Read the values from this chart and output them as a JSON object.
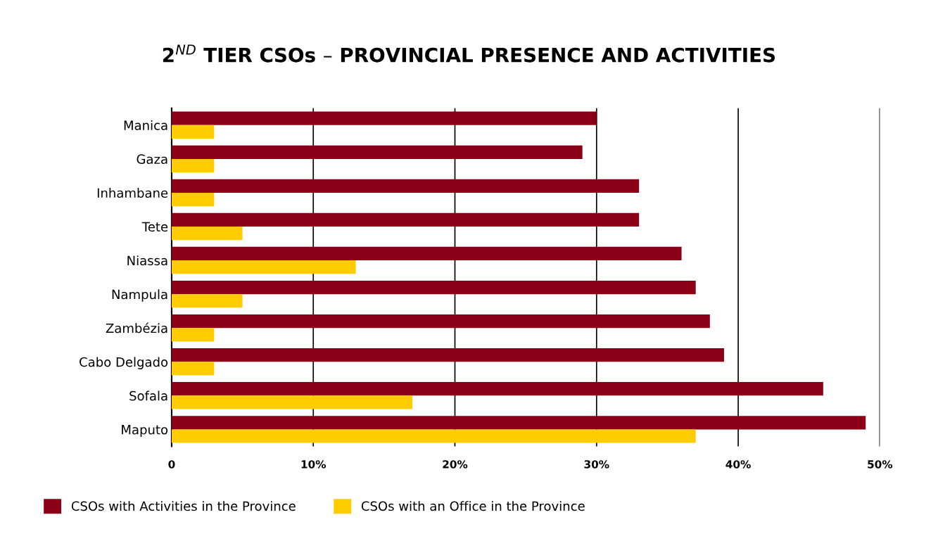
{
  "chart_data": {
    "type": "bar",
    "orientation": "horizontal",
    "title": "2$^{ND}$ TIER CSOs – PROVINCIAL PRESENCE AND ACTIVITIES",
    "categories": [
      "Manica",
      "Gaza",
      "Inhambane",
      "Tete",
      "Niassa",
      "Nampula",
      "Zambézia",
      "Cabo Delgado",
      "Sofala",
      "Maputo"
    ],
    "series": [
      {
        "name": "CSOs with Activities in the Province",
        "color": "#8b0016",
        "values": [
          30,
          29,
          33,
          33,
          36,
          37,
          38,
          39,
          46,
          49
        ]
      },
      {
        "name": "CSOs with an Office in the Province",
        "color": "#ffcc00",
        "values": [
          3,
          3,
          3,
          5,
          13,
          5,
          3,
          3,
          17,
          37
        ]
      }
    ],
    "xlim": [
      0,
      50
    ],
    "xticks": [
      0,
      {
        "value": 10,
        "label": "10%"
      },
      {
        "value": 20,
        "label": "20%"
      },
      {
        "value": 30,
        "label": "30%"
      },
      {
        "value": 40,
        "label": "40%"
      },
      {
        "value": 50,
        "label": "50%"
      }
    ],
    "grid": "x",
    "legend": "bottom left"
  }
}
